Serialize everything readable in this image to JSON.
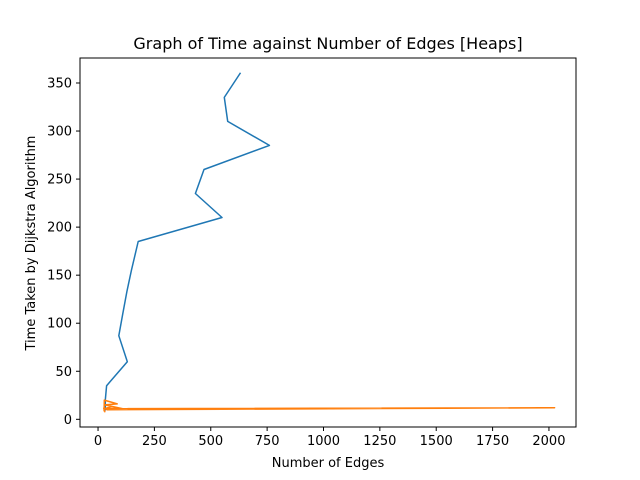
{
  "chart_data": {
    "type": "line",
    "title": "Graph of Time against Number of Edges [Heaps]",
    "xlabel": "Number of Edges",
    "ylabel": "Time Taken by Dijkstra Algorithm",
    "xlim": [
      -80,
      2120
    ],
    "ylim": [
      -8,
      376
    ],
    "xticks": [
      0,
      250,
      500,
      750,
      1000,
      1250,
      1500,
      1750,
      2000
    ],
    "yticks": [
      0,
      50,
      100,
      150,
      200,
      250,
      300,
      350
    ],
    "grid": false,
    "legend": "none",
    "series": [
      {
        "color": "#1f77b4",
        "x": [
          32,
          32,
          38,
          130,
          92,
          110,
          128,
          148,
          178,
          550,
          432,
          470,
          760,
          575,
          560,
          630
        ],
        "y": [
          10,
          20,
          35,
          60,
          87,
          110,
          133,
          155,
          185,
          210,
          235,
          260,
          285,
          310,
          335,
          360
        ]
      },
      {
        "color": "#ff7f0e",
        "x": [
          30,
          26,
          40,
          2025,
          25,
          60,
          110,
          30,
          85,
          28,
          27
        ],
        "y": [
          8,
          12,
          10,
          12,
          11,
          13,
          11,
          15,
          16,
          20,
          9
        ]
      }
    ]
  }
}
